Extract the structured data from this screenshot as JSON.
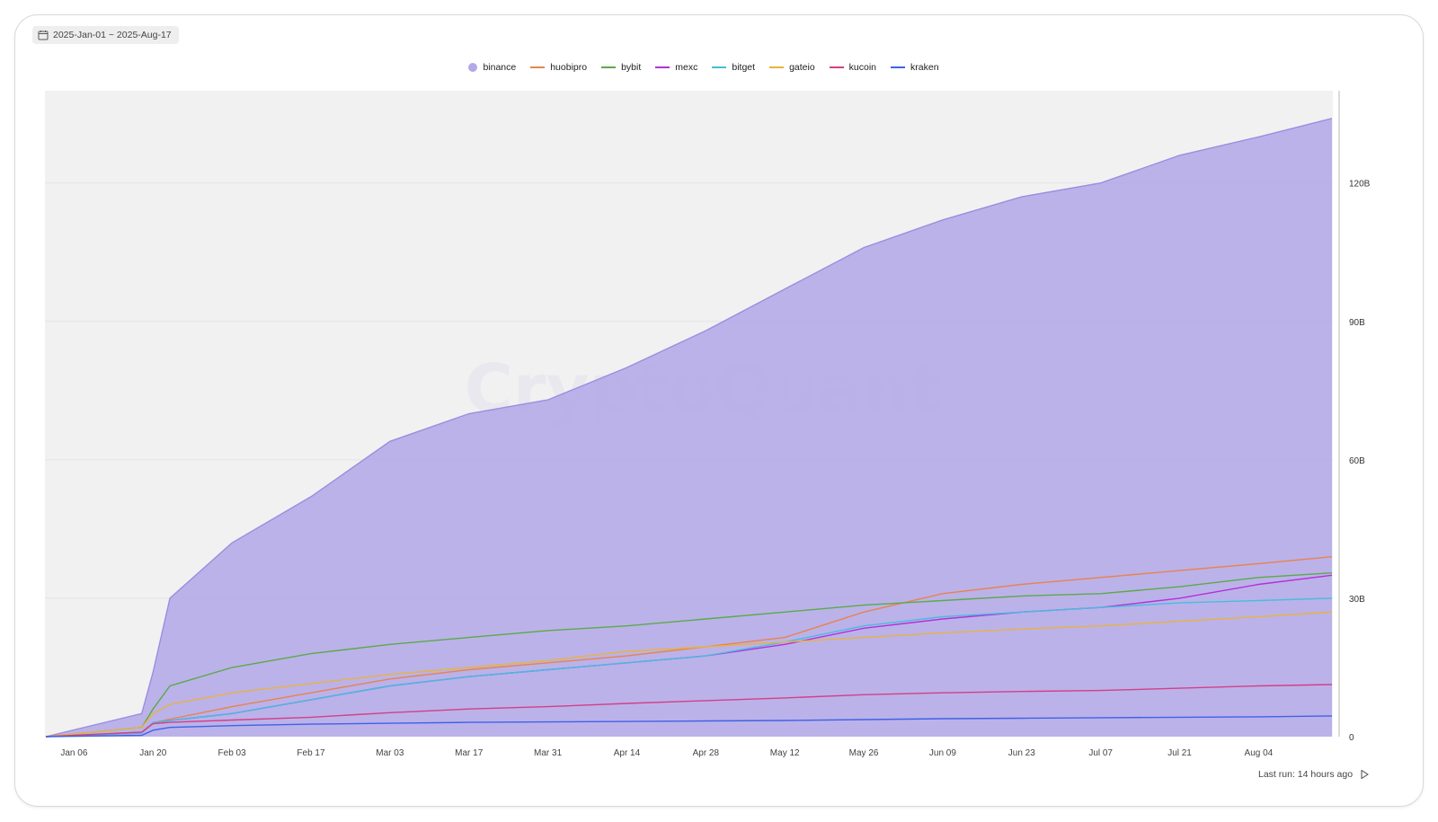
{
  "date_range": "2025-Jan-01 ~ 2025-Aug-17",
  "footer": {
    "last_run": "Last run: 14 hours ago"
  },
  "watermark": "CryptoQuant",
  "chart_data": {
    "type": "area",
    "x_tick_labels": [
      "Jan 06",
      "Jan 20",
      "Feb 03",
      "Feb 17",
      "Mar 03",
      "Mar 17",
      "Mar 31",
      "Apr 14",
      "Apr 28",
      "May 12",
      "May 26",
      "Jun 09",
      "Jun 23",
      "Jul 07",
      "Jul 21",
      "Aug 04"
    ],
    "x": [
      "2025-01-01",
      "2025-01-18",
      "2025-01-20",
      "2025-01-23",
      "2025-02-03",
      "2025-02-17",
      "2025-03-03",
      "2025-03-17",
      "2025-03-31",
      "2025-04-14",
      "2025-04-28",
      "2025-05-12",
      "2025-05-26",
      "2025-06-09",
      "2025-06-23",
      "2025-07-07",
      "2025-07-21",
      "2025-08-04",
      "2025-08-17"
    ],
    "y_ticks": [
      0,
      30,
      60,
      90,
      120
    ],
    "y_tick_labels": [
      "0",
      "30B",
      "60B",
      "90B",
      "120B"
    ],
    "ylim": [
      0,
      140
    ],
    "y_unit": "B",
    "grid": true,
    "legend_position": "top-center",
    "series": [
      {
        "name": "binance",
        "style": "area",
        "color": "#b3a9e8",
        "values": [
          0,
          5,
          14,
          30,
          42,
          52,
          64,
          70,
          73,
          80,
          88,
          97,
          106,
          112,
          117,
          120,
          126,
          130,
          134
        ]
      },
      {
        "name": "huobipro",
        "style": "line",
        "color": "#e8834d",
        "values": [
          0,
          1,
          3,
          3.8,
          6.5,
          9.5,
          12.5,
          14.5,
          16,
          17.5,
          19.5,
          21.5,
          27,
          31,
          33,
          34.5,
          36,
          37.5,
          39
        ]
      },
      {
        "name": "bybit",
        "style": "line",
        "color": "#5aaa47",
        "values": [
          0,
          2,
          6,
          11,
          15,
          18,
          20,
          21.5,
          23,
          24,
          25.5,
          27,
          28.5,
          29.5,
          30.5,
          31,
          32.5,
          34.5,
          35.5
        ]
      },
      {
        "name": "mexc",
        "style": "line",
        "color": "#b62fd8",
        "values": [
          0,
          0.8,
          3,
          3.5,
          5,
          8,
          11,
          13,
          14.5,
          16,
          17.5,
          20,
          23.5,
          25.5,
          27,
          28,
          30,
          33,
          35
        ]
      },
      {
        "name": "bitget",
        "style": "line",
        "color": "#48bcdd",
        "values": [
          0,
          0.8,
          3,
          3.5,
          5,
          8,
          11,
          13,
          14.5,
          16,
          17.5,
          20.5,
          24,
          26,
          27,
          28,
          29,
          29.5,
          30
        ]
      },
      {
        "name": "gateio",
        "style": "line",
        "color": "#e7b33f",
        "values": [
          0,
          2,
          5,
          7,
          9.5,
          11.5,
          13.5,
          15,
          16.5,
          18.5,
          19.5,
          20.5,
          21.5,
          22.5,
          23.3,
          24,
          25,
          26,
          27
        ]
      },
      {
        "name": "kucoin",
        "style": "line",
        "color": "#d43f86",
        "values": [
          0,
          1,
          2.8,
          3.1,
          3.6,
          4.2,
          5.2,
          6,
          6.5,
          7.2,
          7.8,
          8.4,
          9.1,
          9.5,
          9.8,
          10,
          10.5,
          11,
          11.3
        ]
      },
      {
        "name": "kraken",
        "style": "line",
        "color": "#3f62e6",
        "values": [
          0,
          0.3,
          1.4,
          2,
          2.4,
          2.7,
          2.9,
          3.1,
          3.2,
          3.3,
          3.4,
          3.5,
          3.7,
          3.9,
          4,
          4.1,
          4.2,
          4.3,
          4.5
        ]
      }
    ]
  },
  "icons": {
    "calendar": "calendar-icon",
    "play": "play-icon"
  }
}
